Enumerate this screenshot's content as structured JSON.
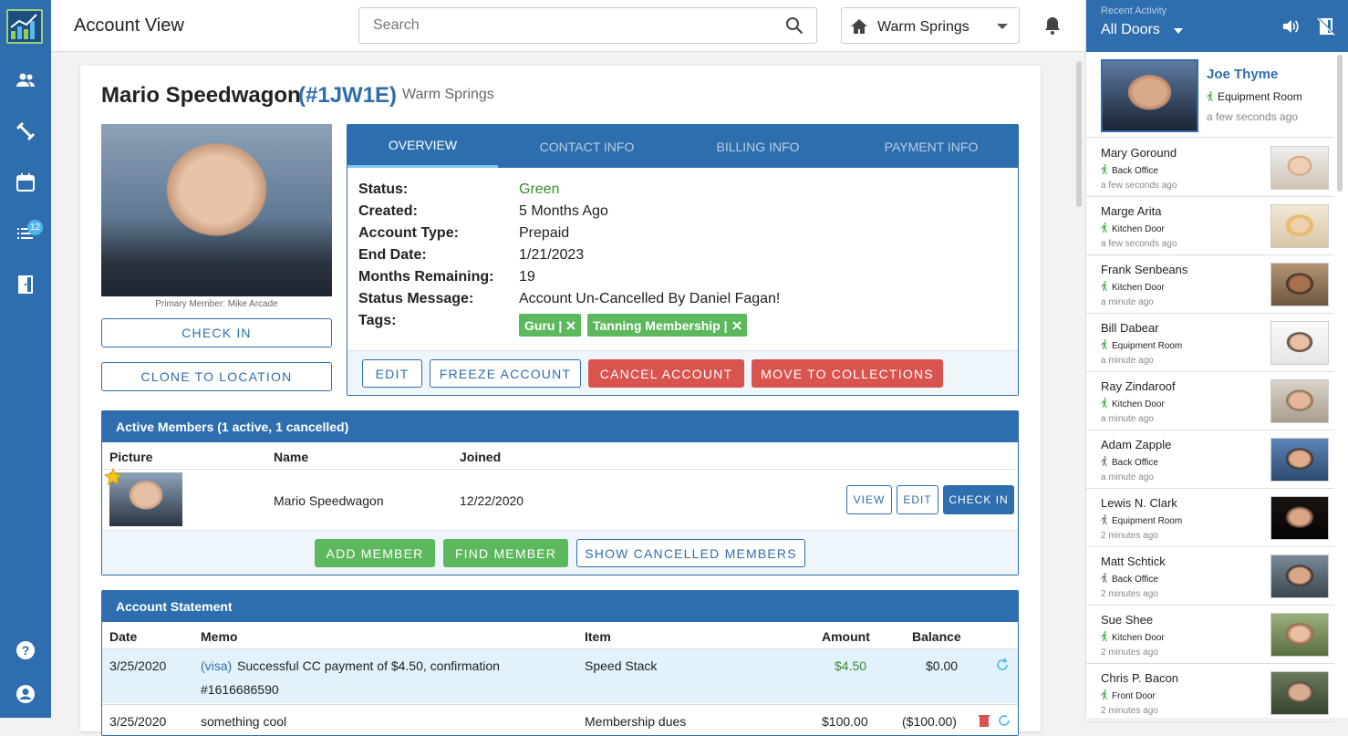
{
  "nav": {
    "badge_count": "12"
  },
  "header": {
    "title": "Account View",
    "search_placeholder": "Search",
    "location": "Warm Springs"
  },
  "account": {
    "name": "Mario Speedwagon",
    "id": "(#1JW1E)",
    "location": "Warm Springs",
    "primary_member_caption": "Primary Member: Mike Arcade",
    "check_in_label": "CHECK IN",
    "clone_label": "CLONE TO LOCATION"
  },
  "tabs": [
    "OVERVIEW",
    "CONTACT INFO",
    "BILLING INFO",
    "PAYMENT INFO"
  ],
  "overview": {
    "status_label": "Status:",
    "status": "Green",
    "created_label": "Created:",
    "created": "5 Months Ago",
    "type_label": "Account Type:",
    "type": "Prepaid",
    "end_label": "End Date:",
    "end": "1/21/2023",
    "months_label": "Months Remaining:",
    "months": "19",
    "message_label": "Status Message:",
    "message": "Account Un-Cancelled By Daniel Fagan!",
    "tags_label": "Tags:",
    "tags": [
      "Guru |",
      "Tanning Membership |"
    ],
    "status_color": "#3a8a2e"
  },
  "actions": {
    "edit": "EDIT",
    "freeze": "FREEZE ACCOUNT",
    "cancel": "CANCEL ACCOUNT",
    "collections": "MOVE TO COLLECTIONS"
  },
  "members": {
    "title": "Active Members (1 active, 1 cancelled)",
    "headers": [
      "Picture",
      "Name",
      "Joined"
    ],
    "rows": [
      {
        "name": "Mario Speedwagon",
        "joined": "12/22/2020"
      }
    ],
    "view": "VIEW",
    "edit": "EDIT",
    "check_in": "CHECK IN",
    "add": "ADD MEMBER",
    "find": "FIND MEMBER",
    "show_cancelled": "SHOW CANCELLED MEMBERS"
  },
  "statement": {
    "title": "Account Statement",
    "headers": [
      "Date",
      "Memo",
      "Item",
      "Amount",
      "Balance"
    ],
    "rows": [
      {
        "date": "3/25/2020",
        "memo_tag": "(visa)",
        "memo": "Successful CC payment of $4.50, confirmation",
        "memo2": "#1616686590",
        "item": "Speed Stack",
        "amount": "$4.50",
        "balance": "$0.00"
      },
      {
        "date": "3/25/2020",
        "memo": "something cool",
        "item": "Membership dues",
        "amount": "$100.00",
        "balance": "($100.00)"
      }
    ]
  },
  "recent": {
    "label": "Recent Activity",
    "filter": "All Doors",
    "featured": {
      "name": "Joe Thyme",
      "door": "Equipment Room",
      "time": "a few seconds ago"
    },
    "items": [
      {
        "name": "Mary Goround",
        "door": "Back Office",
        "time": "a few seconds ago"
      },
      {
        "name": "Marge Arita",
        "door": "Kitchen Door",
        "time": "a few seconds ago"
      },
      {
        "name": "Frank Senbeans",
        "door": "Kitchen Door",
        "time": "a minute ago"
      },
      {
        "name": "Bill Dabear",
        "door": "Equipment Room",
        "time": "a minute ago"
      },
      {
        "name": "Ray Zindaroof",
        "door": "Kitchen Door",
        "time": "a minute ago"
      },
      {
        "name": "Adam Zapple",
        "door": "Back Office",
        "time": "a minute ago"
      },
      {
        "name": "Lewis N. Clark",
        "door": "Equipment Room",
        "time": "2 minutes ago"
      },
      {
        "name": "Matt Schtick",
        "door": "Back Office",
        "time": "2 minutes ago"
      },
      {
        "name": "Sue Shee",
        "door": "Kitchen Door",
        "time": "2 minutes ago"
      },
      {
        "name": "Chris P. Bacon",
        "door": "Front Door",
        "time": "2 minutes ago"
      }
    ]
  },
  "colors": {
    "primary": "#2e6eae",
    "success": "#5cb85c",
    "danger": "#d9534f"
  }
}
